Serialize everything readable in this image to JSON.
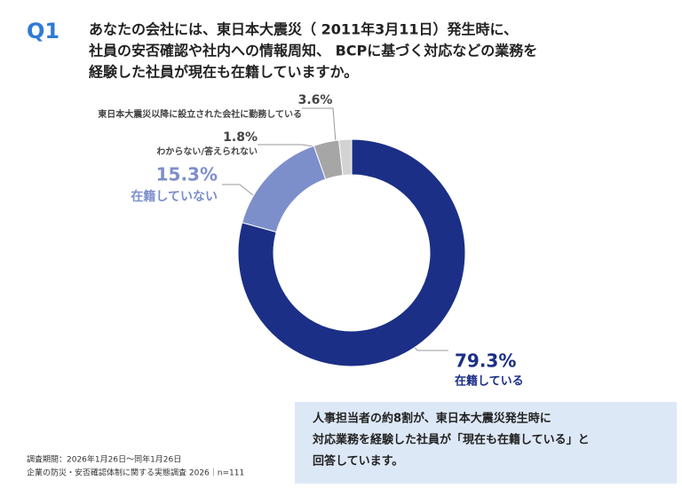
{
  "header": {
    "label": "Q1",
    "question": [
      "あなたの会社には、東日本大震災（ 2011年3月11日）発生時に、",
      "社員の安否確認や社内への情報周知、 BCPに基づく対応などの業務を",
      "経験した社員が現在も在籍していますか。"
    ]
  },
  "chart_data": {
    "type": "donut",
    "categories": [
      "在籍している",
      "在籍していない",
      "東日本大震災以降に設立された会社に勤務している",
      "わからない/答えられない"
    ],
    "values": [
      79.3,
      15.3,
      3.6,
      1.8
    ],
    "value_labels": [
      "79.3%",
      "15.3%",
      "3.6%",
      "1.8%"
    ],
    "colors": [
      "#1b2f86",
      "#7d8fcb",
      "#a6a6a6",
      "#d3d3d3"
    ]
  },
  "note": {
    "lines": [
      "人事担当者の約8割が、東日本大震災発生時に",
      "対応業務を経験した社員が「現在も在籍している」と",
      "回答しています。"
    ]
  },
  "footer": {
    "lines": [
      "調査期間：2026年1月26日～同年1月26日",
      "企業の防災・安否確認体制に関する実態調査 2026｜n=111"
    ]
  }
}
